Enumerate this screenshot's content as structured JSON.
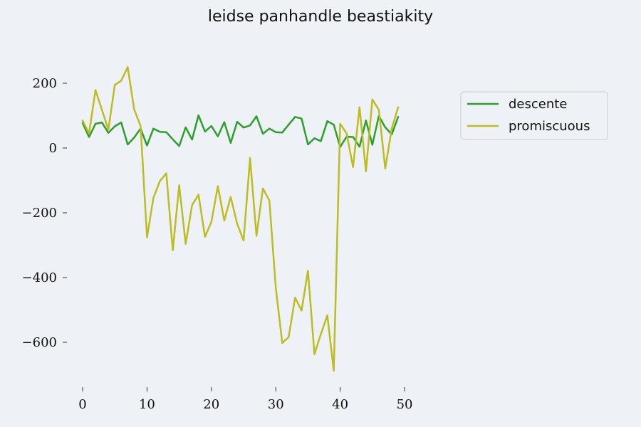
{
  "chart_data": {
    "type": "line",
    "title": "leidse panhandle beastiakity",
    "xlabel": "",
    "ylabel": "",
    "xlim": [
      -2.45,
      51.45
    ],
    "ylim": [
      -727,
      337
    ],
    "xticks": [
      0,
      10,
      20,
      30,
      40,
      50
    ],
    "yticks": [
      -600,
      -400,
      -200,
      0,
      200
    ],
    "ytick_labels": [
      "−600",
      "−400",
      "−200",
      "0",
      "200"
    ],
    "grid": false,
    "legend_position": "top-right",
    "x": [
      0,
      1,
      2,
      3,
      4,
      5,
      6,
      7,
      8,
      9,
      10,
      11,
      12,
      13,
      14,
      15,
      16,
      17,
      18,
      19,
      20,
      21,
      22,
      23,
      24,
      25,
      26,
      27,
      28,
      29,
      30,
      31,
      32,
      33,
      34,
      35,
      36,
      37,
      38,
      39,
      40,
      41,
      42,
      43,
      44,
      45,
      46,
      47,
      48,
      49
    ],
    "series": [
      {
        "name": "descente",
        "color": "#2ca02c",
        "values": [
          77,
          34,
          75,
          79,
          47,
          67,
          79,
          11,
          32,
          60,
          8,
          60,
          50,
          49,
          27,
          6,
          64,
          26,
          101,
          51,
          68,
          36,
          80,
          16,
          81,
          63,
          70,
          98,
          44,
          60,
          49,
          48,
          72,
          96,
          91,
          11,
          30,
          21,
          83,
          72,
          3,
          35,
          34,
          4,
          85,
          10,
          99,
          64,
          42,
          96
        ]
      },
      {
        "name": "promiscuous",
        "color": "#bcbd22",
        "values": [
          85,
          45,
          179,
          118,
          57,
          195,
          208,
          250,
          120,
          68,
          -276,
          -154,
          -102,
          -78,
          -316,
          -115,
          -296,
          -176,
          -144,
          -274,
          -228,
          -118,
          -224,
          -151,
          -234,
          -286,
          -31,
          -271,
          -125,
          -162,
          -431,
          -602,
          -584,
          -462,
          -502,
          -379,
          -637,
          -575,
          -517,
          -688,
          75,
          45,
          -59,
          126,
          -72,
          150,
          118,
          -63,
          60,
          126
        ]
      }
    ]
  }
}
